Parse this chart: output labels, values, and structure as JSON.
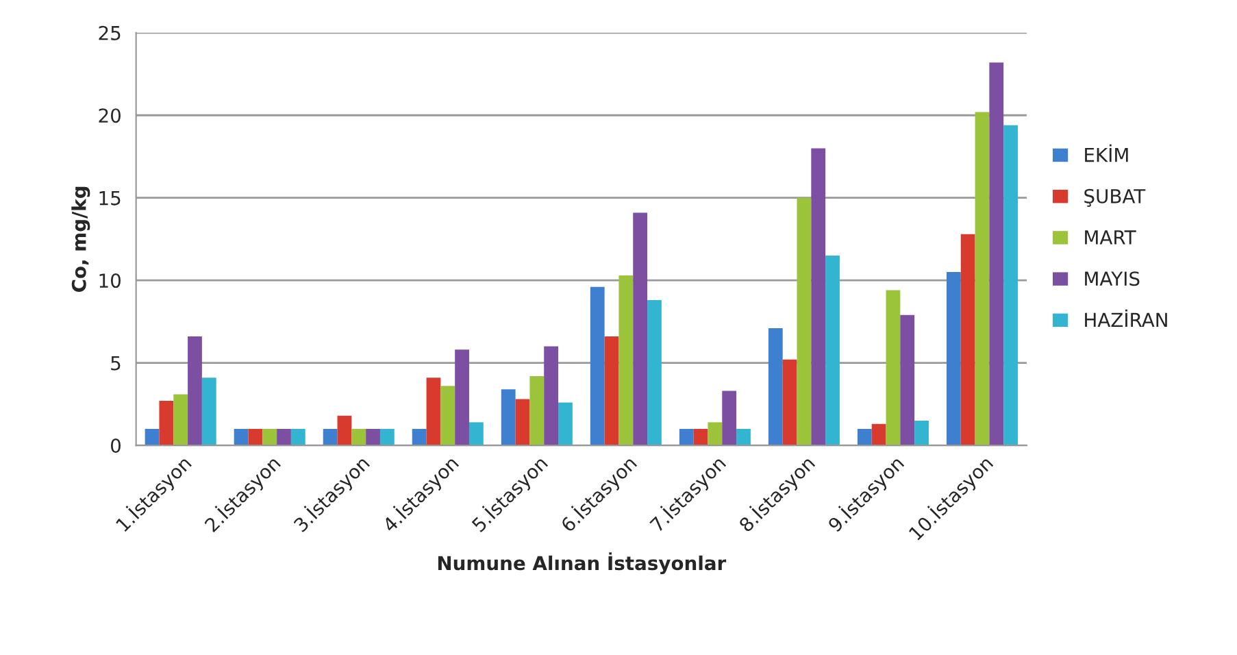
{
  "chart_data": {
    "type": "bar",
    "xlabel": "Numune Alınan İstasyonlar",
    "ylabel": "Co, mg/kg",
    "categories": [
      "1.İstasyon",
      "2.İstasyon",
      "3.İstasyon",
      "4.İstasyon",
      "5.İstasyon",
      "6.İstasyon",
      "7.İstasyon",
      "8.İstasyon",
      "9.İstasyon",
      "10.İstasyon"
    ],
    "series": [
      {
        "name": "EKİM",
        "color": "#3f7fcf",
        "values": [
          1.0,
          1.0,
          1.0,
          1.0,
          3.4,
          9.6,
          1.0,
          7.1,
          1.0,
          10.5
        ]
      },
      {
        "name": "ŞUBAT",
        "color": "#d93a2e",
        "values": [
          2.7,
          1.0,
          1.8,
          4.1,
          2.8,
          6.6,
          1.0,
          5.2,
          1.3,
          12.8
        ]
      },
      {
        "name": "MART",
        "color": "#9cc43a",
        "values": [
          3.1,
          1.0,
          1.0,
          3.6,
          4.2,
          10.3,
          1.4,
          15.0,
          9.4,
          20.2
        ]
      },
      {
        "name": "MAYIS",
        "color": "#7c4fa3",
        "values": [
          6.6,
          1.0,
          1.0,
          5.8,
          6.0,
          14.1,
          3.3,
          18.0,
          7.9,
          23.2
        ]
      },
      {
        "name": "HAZİRAN",
        "color": "#33b5d1",
        "values": [
          4.1,
          1.0,
          1.0,
          1.4,
          2.6,
          8.8,
          1.0,
          11.5,
          1.5,
          19.4
        ]
      }
    ],
    "ylim": [
      0,
      25
    ],
    "yticks": [
      0,
      5,
      10,
      15,
      20,
      25
    ],
    "grid": "y",
    "legend": "right"
  }
}
